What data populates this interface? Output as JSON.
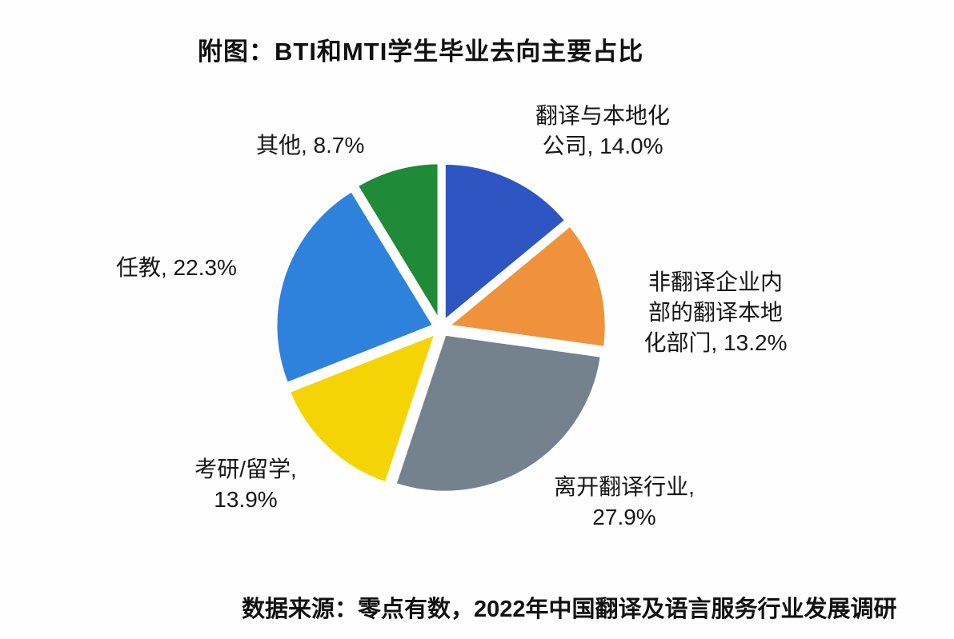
{
  "title": "附图：BTI和MTI学生毕业去向主要占比",
  "source_note": "数据来源：零点有数，2022年中国翻译及语言服务行业发展调研",
  "chart_data": {
    "type": "pie",
    "title": "附图：BTI和MTI学生毕业去向主要占比",
    "start_angle_deg": 0,
    "direction": "clockwise",
    "legend_position": "none",
    "labels_style": "callout-text-around-pie",
    "slices": [
      {
        "label": "翻译与本地化公司",
        "value": 14.0,
        "color": "#2F55C3",
        "label_text": "翻译与本地化\n公司, 14.0%"
      },
      {
        "label": "非翻译企业内部的翻译本地化部门",
        "value": 13.2,
        "color": "#F0923B",
        "label_text": "非翻译企业内\n部的翻译本地\n化部门, 13.2%"
      },
      {
        "label": "离开翻译行业",
        "value": 27.9,
        "color": "#74828E",
        "label_text": "离开翻译行业,\n27.9%"
      },
      {
        "label": "考研/留学",
        "value": 13.9,
        "color": "#F5D405",
        "label_text": "考研/留学,\n13.9%"
      },
      {
        "label": "任教",
        "value": 22.3,
        "color": "#2F82DC",
        "label_text": "任教, 22.3%"
      },
      {
        "label": "其他",
        "value": 8.7,
        "color": "#1F8A38",
        "label_text": "其他, 8.7%"
      }
    ],
    "source_note": "数据来源：零点有数，2022年中国翻译及语言服务行业发展调研"
  }
}
